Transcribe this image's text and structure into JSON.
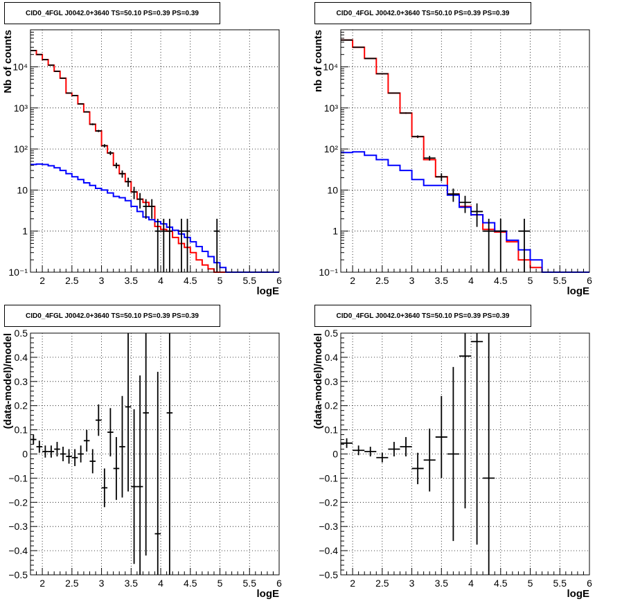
{
  "chart_data": [
    {
      "type": "line",
      "title": "CID0_4FGL J0042.0+3640 TS=50.10 PS=0.39 PS=0.39",
      "xlabel": "logE",
      "ylabel": "Nb of counts",
      "xlim": [
        1.8,
        6.0
      ],
      "ylim": [
        0.1,
        80000
      ],
      "yscale": "log",
      "grid": true,
      "xticks": [
        "2",
        "2.5",
        "3",
        "3.5",
        "4",
        "4.5",
        "5",
        "5.5",
        "6"
      ],
      "yticks": [
        "10⁻¹",
        "1",
        "10",
        "10²",
        "10³",
        "10⁴"
      ],
      "series": [
        {
          "kind": "step",
          "color": "#ff0000",
          "edges": [
            1.8,
            1.9,
            2.0,
            2.1,
            2.2,
            2.3,
            2.4,
            2.5,
            2.6,
            2.7,
            2.8,
            2.9,
            3.0,
            3.1,
            3.2,
            3.3,
            3.4,
            3.5,
            3.6,
            3.7,
            3.8,
            3.9,
            4.0,
            4.1,
            4.2,
            4.3,
            4.4,
            4.5,
            4.6,
            4.7,
            4.8,
            4.9,
            5.0,
            5.1,
            5.2,
            5.3,
            5.4,
            5.5,
            5.6,
            5.7,
            5.8,
            5.9,
            6.0
          ],
          "values": [
            25000,
            20000,
            15000,
            11000,
            7800,
            5300,
            2300,
            2000,
            1250,
            800,
            400,
            275,
            120,
            80,
            40,
            25,
            16,
            9,
            6,
            5,
            4,
            1.3,
            1.1,
            1.0,
            0.7,
            0.5,
            0.4,
            0.3,
            0.2,
            0.15,
            0.12,
            0.1,
            0.1,
            0.1,
            0.1,
            0.1,
            0.1,
            0.1,
            0.1,
            0.1,
            0.1,
            0.1
          ]
        },
        {
          "kind": "step",
          "color": "#0000ff",
          "edges": [
            1.8,
            1.9,
            2.0,
            2.1,
            2.2,
            2.3,
            2.4,
            2.5,
            2.6,
            2.7,
            2.8,
            2.9,
            3.0,
            3.1,
            3.2,
            3.3,
            3.4,
            3.5,
            3.6,
            3.7,
            3.8,
            3.9,
            4.0,
            4.1,
            4.2,
            4.3,
            4.4,
            4.5,
            4.6,
            4.7,
            4.8,
            4.9,
            5.0,
            5.1,
            5.2,
            5.3,
            5.4,
            5.5,
            5.6,
            5.7,
            5.8,
            5.9,
            6.0
          ],
          "values": [
            42,
            43,
            42,
            39,
            35,
            30,
            25,
            21,
            18,
            15,
            13,
            11,
            10,
            8.5,
            7,
            6.5,
            5.5,
            4,
            3,
            2.2,
            1.9,
            1.7,
            1.5,
            1.25,
            1.05,
            0.85,
            0.7,
            0.55,
            0.42,
            0.32,
            0.24,
            0.17,
            0.13,
            0.1,
            0.1,
            0.1,
            0.1,
            0.1,
            0.1,
            0.1,
            0.1,
            0.1
          ]
        },
        {
          "kind": "points",
          "color": "#000000",
          "xerr": 0.05,
          "points": [
            [
              1.85,
              25000
            ],
            [
              1.95,
              20000
            ],
            [
              2.05,
              15000
            ],
            [
              2.15,
              11000
            ],
            [
              2.25,
              7800
            ],
            [
              2.35,
              5300
            ],
            [
              2.45,
              2300
            ],
            [
              2.55,
              2000
            ],
            [
              2.65,
              1250
            ],
            [
              2.75,
              800
            ],
            [
              2.85,
              400
            ],
            [
              2.95,
              275
            ],
            [
              3.05,
              120
            ],
            [
              3.15,
              80
            ],
            [
              3.25,
              40
            ],
            [
              3.35,
              25
            ],
            [
              3.45,
              16
            ],
            [
              3.55,
              9
            ],
            [
              3.65,
              6
            ],
            [
              3.75,
              4
            ],
            [
              3.85,
              4
            ],
            [
              3.95,
              1
            ],
            [
              4.05,
              1
            ],
            [
              4.15,
              1
            ],
            [
              4.35,
              1
            ],
            [
              4.45,
              1
            ],
            [
              4.95,
              1
            ]
          ]
        }
      ]
    },
    {
      "type": "line",
      "title": "CID0_4FGL J0042.0+3640 TS=50.10 PS=0.39 PS=0.39",
      "xlabel": "logE",
      "ylabel": "nb of counts",
      "xlim": [
        1.8,
        6.0
      ],
      "ylim": [
        0.1,
        80000
      ],
      "yscale": "log",
      "grid": true,
      "xticks": [
        "2",
        "2.5",
        "3",
        "3.5",
        "4",
        "4.5",
        "5",
        "5.5",
        "6"
      ],
      "yticks": [
        "10⁻¹",
        "1",
        "10",
        "10²",
        "10³",
        "10⁴"
      ],
      "series": [
        {
          "kind": "step",
          "color": "#ff0000",
          "edges": [
            1.8,
            2.0,
            2.2,
            2.4,
            2.6,
            2.8,
            3.0,
            3.2,
            3.4,
            3.6,
            3.8,
            4.0,
            4.2,
            4.4,
            4.6,
            4.8,
            5.0,
            5.2,
            5.4,
            5.6,
            5.8,
            6.0
          ],
          "values": [
            45000,
            30000,
            16000,
            6800,
            2300,
            750,
            200,
            55,
            21,
            8,
            4,
            2.5,
            1.1,
            0.95,
            0.55,
            0.2,
            0.13,
            0.1,
            0.1,
            0.1,
            0.1
          ]
        },
        {
          "kind": "step",
          "color": "#0000ff",
          "edges": [
            1.8,
            2.0,
            2.2,
            2.4,
            2.6,
            2.8,
            3.0,
            3.2,
            3.4,
            3.6,
            3.8,
            4.0,
            4.2,
            4.4,
            4.6,
            4.8,
            5.0,
            5.2,
            5.4,
            5.6,
            5.8,
            6.0
          ],
          "values": [
            82,
            85,
            70,
            55,
            40,
            30,
            18,
            13,
            13,
            7.5,
            3.8,
            2.5,
            1.6,
            1,
            0.6,
            0.35,
            0.2,
            0.1,
            0.1,
            0.1,
            0.1
          ]
        },
        {
          "kind": "points",
          "color": "#000000",
          "xerr": 0.1,
          "points": [
            [
              1.9,
              45000
            ],
            [
              2.1,
              30000
            ],
            [
              2.3,
              16000
            ],
            [
              2.5,
              6800
            ],
            [
              2.7,
              2300
            ],
            [
              2.9,
              750
            ],
            [
              3.1,
              200
            ],
            [
              3.3,
              60
            ],
            [
              3.5,
              21
            ],
            [
              3.7,
              8
            ],
            [
              3.9,
              5
            ],
            [
              4.1,
              3
            ],
            [
              4.3,
              1
            ],
            [
              4.5,
              1
            ],
            [
              4.9,
              1
            ]
          ]
        }
      ]
    },
    {
      "type": "scatter",
      "title": "CID0_4FGL J0042.0+3640 TS=50.10 PS=0.39 PS=0.39",
      "xlabel": "logE",
      "ylabel": "(data-model)/model",
      "xlim": [
        1.8,
        6.0
      ],
      "ylim": [
        -0.5,
        0.5
      ],
      "grid": true,
      "xticks": [
        "2",
        "2.5",
        "3",
        "3.5",
        "4",
        "4.5",
        "5",
        "5.5",
        "6"
      ],
      "yticks": [
        "−0.5",
        "−0.4",
        "−0.3",
        "−0.2",
        "−0.1",
        "0",
        "0.1",
        "0.2",
        "0.3",
        "0.4",
        "0.5"
      ],
      "xerr": 0.05,
      "points": [
        [
          1.85,
          0.06,
          0.02
        ],
        [
          1.95,
          0.03,
          0.025
        ],
        [
          2.05,
          0.01,
          0.025
        ],
        [
          2.15,
          0.01,
          0.025
        ],
        [
          2.25,
          0.02,
          0.03
        ],
        [
          2.35,
          0.0,
          0.03
        ],
        [
          2.45,
          -0.01,
          0.03
        ],
        [
          2.55,
          -0.015,
          0.035
        ],
        [
          2.65,
          0.0,
          0.035
        ],
        [
          2.75,
          0.055,
          0.045
        ],
        [
          2.85,
          -0.03,
          0.05
        ],
        [
          2.95,
          0.14,
          0.065
        ],
        [
          3.05,
          -0.14,
          0.08
        ],
        [
          3.15,
          0.09,
          0.1
        ],
        [
          3.25,
          -0.06,
          0.13
        ],
        [
          3.35,
          0.03,
          0.21
        ],
        [
          3.45,
          0.195,
          0.35
        ],
        [
          3.55,
          -0.135,
          0.32
        ],
        [
          3.65,
          -0.135,
          0.46
        ],
        [
          3.75,
          0.17,
          0.59
        ],
        [
          3.95,
          -0.33,
          0.67
        ],
        [
          4.15,
          0.17,
          0.95
        ]
      ]
    },
    {
      "type": "scatter",
      "title": "CID0_4FGL J0042.0+3640 TS=50.10 PS=0.39 PS=0.39",
      "xlabel": "logE",
      "ylabel": "(data-model)/model",
      "xlim": [
        1.8,
        6.0
      ],
      "ylim": [
        -0.5,
        0.5
      ],
      "grid": true,
      "xticks": [
        "2",
        "2.5",
        "3",
        "3.5",
        "4",
        "4.5",
        "5",
        "5.5",
        "6"
      ],
      "yticks": [
        "−0.5",
        "−0.4",
        "−0.3",
        "−0.2",
        "−0.1",
        "0",
        "0.1",
        "0.2",
        "0.3",
        "0.4",
        "0.5"
      ],
      "xerr": 0.1,
      "points": [
        [
          1.9,
          0.045,
          0.02
        ],
        [
          2.1,
          0.015,
          0.02
        ],
        [
          2.3,
          0.01,
          0.02
        ],
        [
          2.5,
          -0.015,
          0.02
        ],
        [
          2.7,
          0.02,
          0.03
        ],
        [
          2.9,
          0.03,
          0.04
        ],
        [
          3.1,
          -0.06,
          0.065
        ],
        [
          3.3,
          -0.025,
          0.13
        ],
        [
          3.5,
          0.07,
          0.17
        ],
        [
          3.7,
          0.0,
          0.36
        ],
        [
          3.9,
          0.405,
          0.63
        ],
        [
          4.1,
          0.465,
          0.84
        ],
        [
          4.3,
          -0.1,
          0.85
        ]
      ]
    }
  ]
}
